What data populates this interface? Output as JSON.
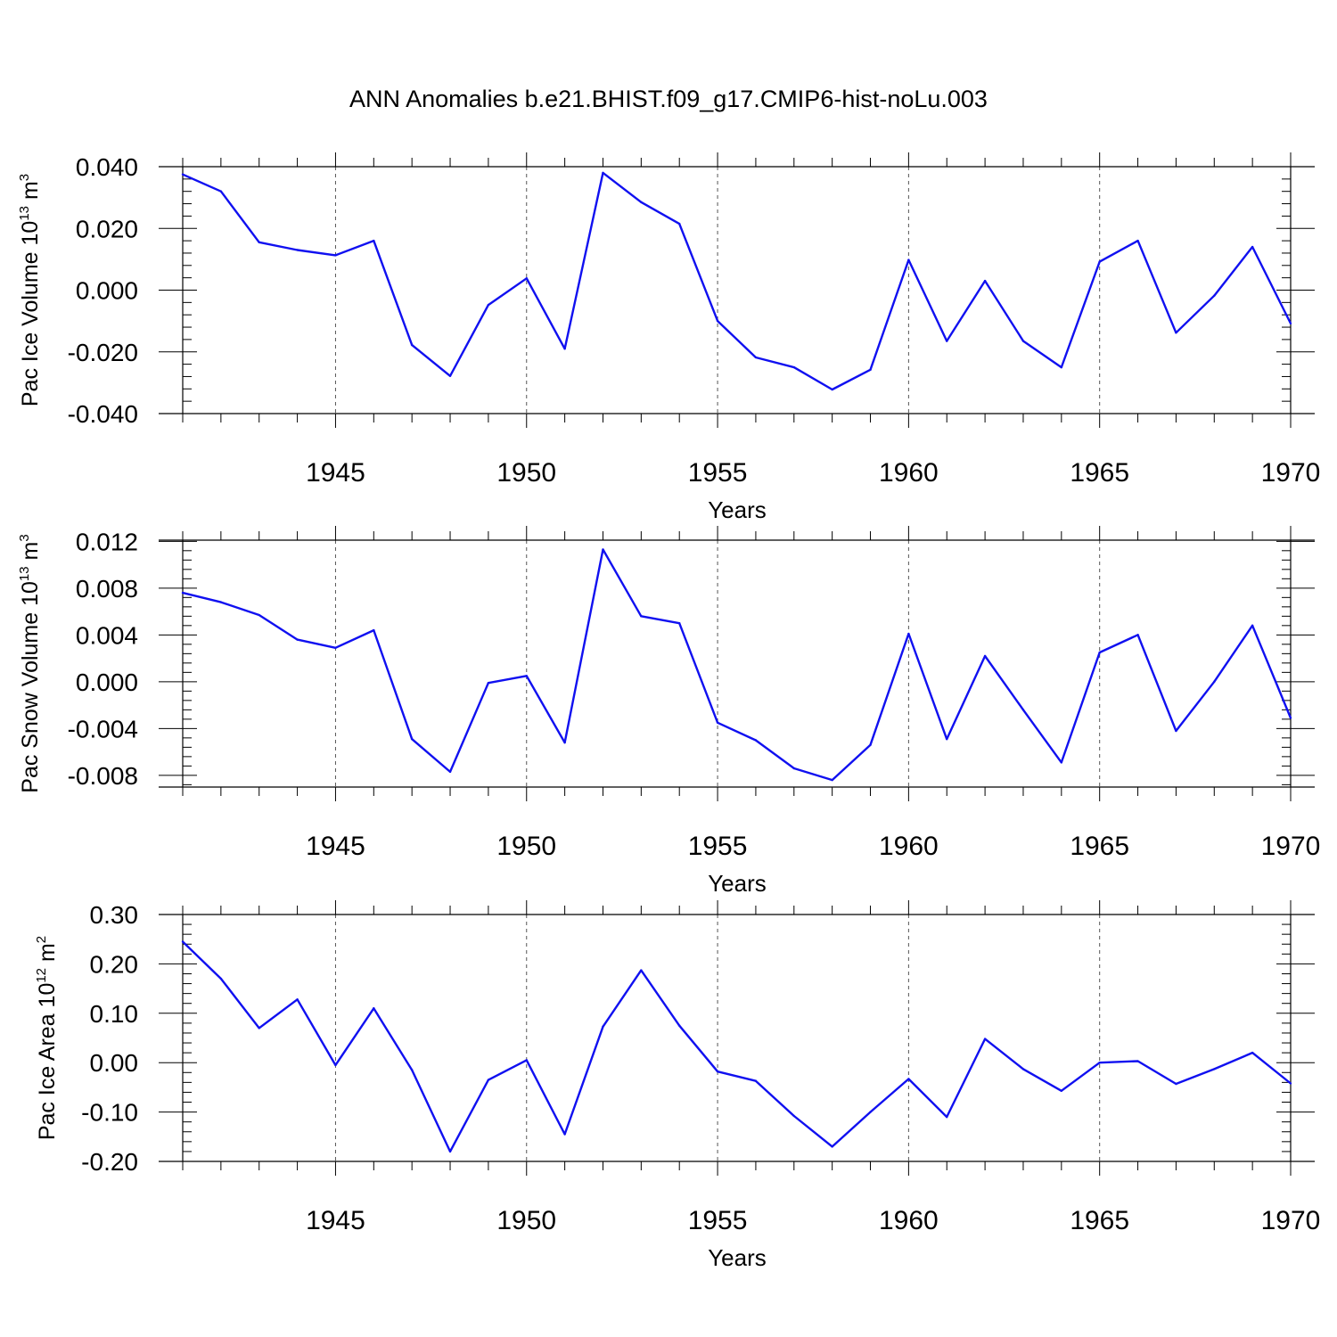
{
  "title": "ANN Anomalies b.e21.BHIST.f09_g17.CMIP6-hist-noLu.003",
  "colors": {
    "line": "#1010f0",
    "axis": "#000000",
    "grid": "#555555"
  },
  "chart_data": [
    {
      "type": "line",
      "ylabel": "Pac Ice Volume 10",
      "ylabel_exp": "13",
      "ylabel_unit": "m",
      "ylabel_unit_exp": "3",
      "xlabel": "Years",
      "xlim": [
        1941,
        1970
      ],
      "ylim": [
        -0.04,
        0.04
      ],
      "yticks": [
        0.04,
        0.02,
        0.0,
        -0.02,
        -0.04
      ],
      "yticklabels": [
        "0.040",
        "0.020",
        "0.000",
        "-0.020",
        "-0.040"
      ],
      "xticks": [
        1945,
        1950,
        1955,
        1960,
        1965,
        1970
      ],
      "xticklabels": [
        "1945",
        "1950",
        "1955",
        "1960",
        "1965",
        "1970"
      ],
      "x": [
        1941,
        1942,
        1943,
        1944,
        1945,
        1946,
        1947,
        1948,
        1949,
        1950,
        1951,
        1952,
        1953,
        1954,
        1955,
        1956,
        1957,
        1958,
        1959,
        1960,
        1961,
        1962,
        1963,
        1964,
        1965,
        1966,
        1967,
        1968,
        1969,
        1970
      ],
      "values": [
        0.0375,
        0.032,
        0.0155,
        0.013,
        0.0113,
        0.016,
        -0.0178,
        -0.0278,
        -0.0048,
        0.0038,
        -0.019,
        0.038,
        0.0285,
        0.0215,
        -0.01,
        -0.0218,
        -0.025,
        -0.0322,
        -0.0258,
        0.0098,
        -0.0165,
        0.003,
        -0.0165,
        -0.025,
        0.0092,
        0.016,
        -0.0138,
        -0.0018,
        0.014,
        -0.0108
      ]
    },
    {
      "type": "line",
      "ylabel": "Pac Snow Volume 10",
      "ylabel_exp": "13",
      "ylabel_unit": "m",
      "ylabel_unit_exp": "3",
      "xlabel": "Years",
      "xlim": [
        1941,
        1970
      ],
      "ylim": [
        -0.009,
        0.0121
      ],
      "yticks": [
        0.012,
        0.008,
        0.004,
        0.0,
        -0.004,
        -0.008
      ],
      "yticklabels": [
        "0.012",
        "0.008",
        "0.004",
        "0.000",
        "-0.004",
        "-0.008"
      ],
      "xticks": [
        1945,
        1950,
        1955,
        1960,
        1965,
        1970
      ],
      "xticklabels": [
        "1945",
        "1950",
        "1955",
        "1960",
        "1965",
        "1970"
      ],
      "x": [
        1941,
        1942,
        1943,
        1944,
        1945,
        1946,
        1947,
        1948,
        1949,
        1950,
        1951,
        1952,
        1953,
        1954,
        1955,
        1956,
        1957,
        1958,
        1959,
        1960,
        1961,
        1962,
        1963,
        1964,
        1965,
        1966,
        1967,
        1968,
        1969,
        1970
      ],
      "values": [
        0.0076,
        0.0068,
        0.0057,
        0.0036,
        0.0029,
        0.0044,
        -0.0049,
        -0.0077,
        -0.0001,
        0.0005,
        -0.0052,
        0.0113,
        0.0056,
        0.005,
        -0.0035,
        -0.005,
        -0.0074,
        -0.0084,
        -0.0054,
        0.0041,
        -0.0049,
        0.0022,
        -0.0024,
        -0.0069,
        0.0025,
        0.004,
        -0.0042,
        0.0,
        0.0048,
        -0.0031
      ]
    },
    {
      "type": "line",
      "ylabel": "Pac Ice Area 10",
      "ylabel_exp": "12",
      "ylabel_unit": "m",
      "ylabel_unit_exp": "2",
      "xlabel": "Years",
      "xlim": [
        1941,
        1970
      ],
      "ylim": [
        -0.2,
        0.3
      ],
      "yticks": [
        0.3,
        0.2,
        0.1,
        0.0,
        -0.1,
        -0.2
      ],
      "yticklabels": [
        "0.30",
        "0.20",
        "0.10",
        "0.00",
        "-0.10",
        "-0.20"
      ],
      "xticks": [
        1945,
        1950,
        1955,
        1960,
        1965,
        1970
      ],
      "xticklabels": [
        "1945",
        "1950",
        "1955",
        "1960",
        "1965",
        "1970"
      ],
      "x": [
        1941,
        1942,
        1943,
        1944,
        1945,
        1946,
        1947,
        1948,
        1949,
        1950,
        1951,
        1952,
        1953,
        1954,
        1955,
        1956,
        1957,
        1958,
        1959,
        1960,
        1961,
        1962,
        1963,
        1964,
        1965,
        1966,
        1967,
        1968,
        1969,
        1970
      ],
      "values": [
        0.245,
        0.17,
        0.07,
        0.128,
        -0.005,
        0.11,
        -0.015,
        -0.18,
        -0.035,
        0.005,
        -0.145,
        0.073,
        0.187,
        0.075,
        -0.018,
        -0.037,
        -0.108,
        -0.17,
        -0.1,
        -0.033,
        -0.11,
        0.048,
        -0.013,
        -0.057,
        0.0,
        0.003,
        -0.043,
        -0.013,
        0.02,
        -0.042
      ]
    }
  ]
}
